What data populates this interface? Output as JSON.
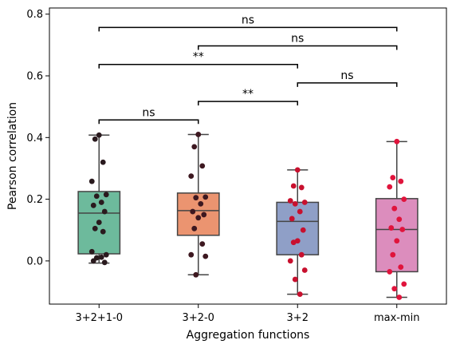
{
  "chart_data": {
    "type": "box",
    "xlabel": "Aggregation functions",
    "ylabel": "Pearson correlation",
    "ylim": [
      -0.14,
      0.82
    ],
    "y_ticks": [
      0.0,
      0.2,
      0.4,
      0.6,
      0.8
    ],
    "y_tick_labels": [
      "0.0",
      "0.2",
      "0.4",
      "0.6",
      "0.8"
    ],
    "grid": false,
    "categories": [
      "3+2+1-0",
      "3+2-0",
      "3+2",
      "max-min"
    ],
    "boxes": [
      {
        "name": "3+2+1-0",
        "color": "#6dba9c",
        "q1": 0.023,
        "median": 0.155,
        "q3": 0.225,
        "whisker_low": -0.007,
        "whisker_high": 0.408
      },
      {
        "name": "3+2-0",
        "color": "#eb9470",
        "q1": 0.083,
        "median": 0.163,
        "q3": 0.22,
        "whisker_low": -0.045,
        "whisker_high": 0.41
      },
      {
        "name": "3+2",
        "color": "#8f9fc7",
        "q1": 0.02,
        "median": 0.128,
        "q3": 0.19,
        "whisker_low": -0.108,
        "whisker_high": 0.295
      },
      {
        "name": "max-min",
        "color": "#dc8dbd",
        "q1": -0.035,
        "median": 0.102,
        "q3": 0.202,
        "whisker_low": -0.118,
        "whisker_high": 0.387
      }
    ],
    "points": [
      {
        "category": "3+2+1-0",
        "color": "#2a1a1e",
        "values": [
          0.408,
          0.395,
          0.32,
          0.258,
          0.215,
          0.21,
          0.19,
          0.18,
          0.16,
          0.125,
          0.105,
          0.095,
          0.03,
          0.02,
          0.01,
          0.012,
          0.0,
          -0.005
        ]
      },
      {
        "category": "3+2-0",
        "color": "#3d1820",
        "values": [
          0.41,
          0.37,
          0.308,
          0.275,
          0.207,
          0.205,
          0.185,
          0.16,
          0.15,
          0.14,
          0.105,
          0.055,
          0.02,
          0.015,
          -0.045
        ]
      },
      {
        "category": "3+2",
        "color": "#c8102e",
        "values": [
          0.295,
          0.243,
          0.238,
          0.195,
          0.19,
          0.185,
          0.16,
          0.137,
          0.1,
          0.065,
          0.06,
          0.02,
          0.0,
          -0.03,
          -0.06,
          -0.108
        ]
      },
      {
        "category": "max-min",
        "color": "#e0143c",
        "values": [
          0.387,
          0.27,
          0.258,
          0.24,
          0.2,
          0.17,
          0.135,
          0.107,
          0.102,
          0.065,
          0.02,
          -0.02,
          -0.035,
          -0.075,
          -0.09,
          -0.118
        ]
      }
    ],
    "significance": [
      {
        "from": "3+2+1-0",
        "to": "max-min",
        "level": 0.757,
        "label": "ns"
      },
      {
        "from": "3+2-0",
        "to": "max-min",
        "level": 0.697,
        "label": "ns"
      },
      {
        "from": "3+2+1-0",
        "to": "3+2",
        "level": 0.637,
        "label": "**"
      },
      {
        "from": "3+2",
        "to": "max-min",
        "level": 0.577,
        "label": "ns"
      },
      {
        "from": "3+2-0",
        "to": "3+2",
        "level": 0.517,
        "label": "**"
      },
      {
        "from": "3+2+1-0",
        "to": "3+2-0",
        "level": 0.457,
        "label": "ns"
      }
    ]
  }
}
